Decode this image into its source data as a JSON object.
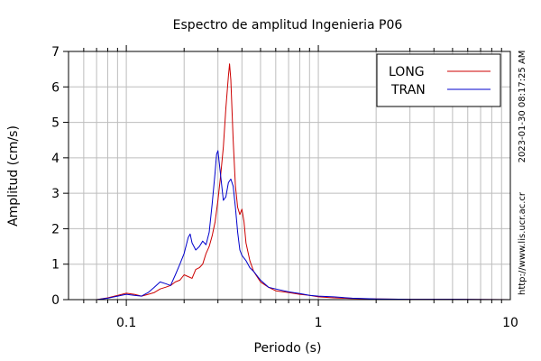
{
  "chart_data": {
    "type": "line",
    "title": "Espectro de amplitud Ingenieria P06",
    "xlabel": "Periodo (s)",
    "ylabel": "Amplitud (cm/s)",
    "x_scale": "log",
    "xlim": [
      0.05,
      10
    ],
    "ylim": [
      0,
      7
    ],
    "x_tick_labels": [
      {
        "value": 0.1,
        "label": "0.1"
      },
      {
        "value": 1,
        "label": "1"
      },
      {
        "value": 10,
        "label": "10"
      }
    ],
    "y_ticks": [
      0,
      1,
      2,
      3,
      4,
      5,
      6,
      7
    ],
    "grid": true,
    "legend_position": "top-right",
    "timestamp": "2023-01-30 08:17:25 AM",
    "source_url": "http://www.lis.ucr.ac.cr",
    "series": [
      {
        "name": "LONG",
        "color": "#cc0000",
        "points": [
          [
            0.05,
            0
          ],
          [
            0.07,
            0
          ],
          [
            0.08,
            0.05
          ],
          [
            0.09,
            0.12
          ],
          [
            0.1,
            0.18
          ],
          [
            0.11,
            0.15
          ],
          [
            0.12,
            0.1
          ],
          [
            0.13,
            0.15
          ],
          [
            0.14,
            0.2
          ],
          [
            0.15,
            0.3
          ],
          [
            0.16,
            0.35
          ],
          [
            0.17,
            0.4
          ],
          [
            0.18,
            0.5
          ],
          [
            0.19,
            0.55
          ],
          [
            0.2,
            0.7
          ],
          [
            0.21,
            0.65
          ],
          [
            0.22,
            0.6
          ],
          [
            0.23,
            0.85
          ],
          [
            0.24,
            0.9
          ],
          [
            0.25,
            1.0
          ],
          [
            0.26,
            1.3
          ],
          [
            0.27,
            1.5
          ],
          [
            0.28,
            1.8
          ],
          [
            0.29,
            2.2
          ],
          [
            0.3,
            2.8
          ],
          [
            0.31,
            3.5
          ],
          [
            0.32,
            4.3
          ],
          [
            0.33,
            5.4
          ],
          [
            0.34,
            6.3
          ],
          [
            0.345,
            6.65
          ],
          [
            0.35,
            6.2
          ],
          [
            0.36,
            4.5
          ],
          [
            0.37,
            3.2
          ],
          [
            0.38,
            2.6
          ],
          [
            0.39,
            2.4
          ],
          [
            0.4,
            2.55
          ],
          [
            0.41,
            2.2
          ],
          [
            0.42,
            1.6
          ],
          [
            0.44,
            1.1
          ],
          [
            0.46,
            0.8
          ],
          [
            0.5,
            0.5
          ],
          [
            0.55,
            0.35
          ],
          [
            0.6,
            0.25
          ],
          [
            0.7,
            0.2
          ],
          [
            0.8,
            0.15
          ],
          [
            0.9,
            0.12
          ],
          [
            1.0,
            0.08
          ],
          [
            1.2,
            0.05
          ],
          [
            1.5,
            0.03
          ],
          [
            2,
            0.02
          ],
          [
            3,
            0.01
          ],
          [
            5,
            0.01
          ],
          [
            10,
            0
          ]
        ]
      },
      {
        "name": "TRAN",
        "color": "#0000cc",
        "points": [
          [
            0.05,
            0
          ],
          [
            0.07,
            0
          ],
          [
            0.08,
            0.04
          ],
          [
            0.09,
            0.1
          ],
          [
            0.1,
            0.15
          ],
          [
            0.11,
            0.12
          ],
          [
            0.12,
            0.1
          ],
          [
            0.13,
            0.2
          ],
          [
            0.14,
            0.35
          ],
          [
            0.15,
            0.5
          ],
          [
            0.16,
            0.45
          ],
          [
            0.17,
            0.4
          ],
          [
            0.18,
            0.7
          ],
          [
            0.19,
            1.0
          ],
          [
            0.2,
            1.3
          ],
          [
            0.21,
            1.75
          ],
          [
            0.215,
            1.85
          ],
          [
            0.22,
            1.6
          ],
          [
            0.23,
            1.4
          ],
          [
            0.24,
            1.5
          ],
          [
            0.25,
            1.65
          ],
          [
            0.26,
            1.55
          ],
          [
            0.27,
            1.9
          ],
          [
            0.28,
            2.7
          ],
          [
            0.29,
            3.6
          ],
          [
            0.295,
            4.1
          ],
          [
            0.3,
            4.2
          ],
          [
            0.31,
            3.5
          ],
          [
            0.32,
            2.8
          ],
          [
            0.33,
            2.9
          ],
          [
            0.34,
            3.3
          ],
          [
            0.35,
            3.4
          ],
          [
            0.36,
            3.2
          ],
          [
            0.37,
            2.6
          ],
          [
            0.38,
            1.9
          ],
          [
            0.39,
            1.4
          ],
          [
            0.4,
            1.25
          ],
          [
            0.42,
            1.1
          ],
          [
            0.44,
            0.9
          ],
          [
            0.46,
            0.8
          ],
          [
            0.5,
            0.55
          ],
          [
            0.55,
            0.35
          ],
          [
            0.6,
            0.3
          ],
          [
            0.7,
            0.22
          ],
          [
            0.8,
            0.17
          ],
          [
            0.9,
            0.12
          ],
          [
            1.0,
            0.1
          ],
          [
            1.2,
            0.08
          ],
          [
            1.5,
            0.04
          ],
          [
            2,
            0.02
          ],
          [
            3,
            0.01
          ],
          [
            5,
            0.01
          ],
          [
            10,
            0
          ]
        ]
      }
    ]
  }
}
